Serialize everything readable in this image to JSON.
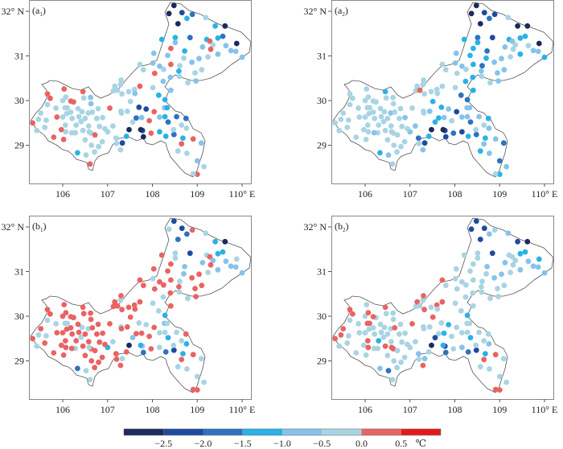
{
  "chart_data": {
    "type": "scatter",
    "panels": [
      {
        "id": "a1",
        "label_main": "(a",
        "label_sub": "1",
        "label_end": ")"
      },
      {
        "id": "a2",
        "label_main": "(a",
        "label_sub": "2",
        "label_end": ")"
      },
      {
        "id": "b1",
        "label_main": "(b",
        "label_sub": "1",
        "label_end": ")"
      },
      {
        "id": "b2",
        "label_main": "(b",
        "label_sub": "2",
        "label_end": ")"
      }
    ],
    "x_ticks": [
      "106",
      "107",
      "108",
      "109",
      "110° E"
    ],
    "x_tick_values": [
      106,
      107,
      108,
      109,
      110
    ],
    "y_ticks": [
      "32° N",
      "31",
      "30",
      "29"
    ],
    "y_tick_values": [
      32,
      31,
      30,
      29
    ],
    "xlim": [
      105.26,
      110.2
    ],
    "ylim": [
      28.14,
      32.25
    ],
    "colorbar": {
      "colors": [
        "#1c2a5c",
        "#1f4b9e",
        "#2e72bd",
        "#2ab2e6",
        "#86c3ec",
        "#a8d4e3",
        "#e96363",
        "#e5191d"
      ],
      "tick_labels": [
        "−2.5",
        "−2.0",
        "−1.5",
        "−1.0",
        "−0.5",
        "0.0",
        "0.5"
      ],
      "tick_values": [
        -2.5,
        -2.0,
        -1.5,
        -1.0,
        -0.5,
        0.0,
        0.5
      ],
      "unit": "℃"
    },
    "stations_lonlat": [
      [
        108.48,
        32.13
      ],
      [
        108.37,
        31.95
      ],
      [
        108.66,
        31.97
      ],
      [
        108.89,
        31.93
      ],
      [
        108.77,
        31.84
      ],
      [
        109.19,
        31.86
      ],
      [
        108.57,
        31.72
      ],
      [
        109.4,
        31.67
      ],
      [
        109.62,
        31.67
      ],
      [
        108.21,
        31.37
      ],
      [
        108.51,
        31.41
      ],
      [
        108.84,
        31.41
      ],
      [
        108.51,
        31.3
      ],
      [
        109.21,
        31.37
      ],
      [
        109.28,
        31.33
      ],
      [
        109.46,
        31.4
      ],
      [
        109.57,
        31.44
      ],
      [
        109.88,
        31.28
      ],
      [
        109.35,
        31.25
      ],
      [
        109.64,
        31.23
      ],
      [
        108.41,
        31.17
      ],
      [
        108.72,
        31.11
      ],
      [
        108.03,
        31.06
      ],
      [
        108.34,
        31.01
      ],
      [
        109.12,
        31.2
      ],
      [
        109.3,
        31.15
      ],
      [
        109.46,
        31.04
      ],
      [
        109.75,
        31.12
      ],
      [
        109.86,
        31.1
      ],
      [
        110.0,
        30.97
      ],
      [
        109.04,
        30.94
      ],
      [
        108.88,
        30.86
      ],
      [
        108.7,
        30.95
      ],
      [
        109.24,
        30.98
      ],
      [
        107.72,
        30.81
      ],
      [
        108.01,
        30.84
      ],
      [
        108.41,
        30.81
      ],
      [
        108.16,
        30.77
      ],
      [
        108.25,
        30.7
      ],
      [
        108.61,
        30.78
      ],
      [
        108.59,
        30.66
      ],
      [
        109.1,
        30.69
      ],
      [
        107.8,
        30.69
      ],
      [
        108.05,
        30.61
      ],
      [
        108.95,
        30.62
      ],
      [
        108.6,
        30.54
      ],
      [
        108.4,
        30.52
      ],
      [
        108.79,
        30.4
      ],
      [
        108.97,
        30.44
      ],
      [
        108.24,
        30.43
      ],
      [
        107.72,
        30.32
      ],
      [
        107.6,
        30.25
      ],
      [
        107.29,
        30.36
      ],
      [
        107.3,
        30.46
      ],
      [
        107.13,
        30.22
      ],
      [
        107.16,
        30.32
      ],
      [
        107.32,
        30.15
      ],
      [
        107.47,
        30.2
      ],
      [
        107.61,
        30.16
      ],
      [
        108.14,
        30.12
      ],
      [
        108.28,
        30.02
      ],
      [
        108.01,
        30.29
      ],
      [
        108.41,
        30.23
      ],
      [
        108.27,
        29.84
      ],
      [
        108.16,
        29.63
      ],
      [
        108.35,
        29.52
      ],
      [
        108.54,
        29.64
      ],
      [
        108.75,
        29.6
      ],
      [
        108.65,
        29.45
      ],
      [
        108.76,
        29.38
      ],
      [
        108.48,
        29.24
      ],
      [
        108.3,
        29.2
      ],
      [
        108.16,
        29.3
      ],
      [
        108.68,
        29.16
      ],
      [
        108.91,
        29.14
      ],
      [
        107.93,
        29.55
      ],
      [
        107.97,
        29.27
      ],
      [
        107.78,
        29.33
      ],
      [
        107.64,
        29.61
      ],
      [
        107.86,
        29.81
      ],
      [
        108.33,
        29.84
      ],
      [
        108.65,
        29.03
      ],
      [
        108.77,
        28.82
      ],
      [
        109.09,
        29.05
      ],
      [
        108.57,
        28.87
      ],
      [
        108.47,
        29.35
      ],
      [
        108.04,
        29.75
      ],
      [
        109.0,
        28.65
      ],
      [
        109.15,
        28.52
      ],
      [
        109.0,
        28.35
      ],
      [
        108.91,
        28.36
      ],
      [
        108.28,
        29.64
      ],
      [
        107.7,
        29.85
      ],
      [
        107.56,
        29.52
      ],
      [
        107.76,
        29.62
      ],
      [
        107.44,
        29.76
      ],
      [
        107.3,
        29.76
      ],
      [
        107.22,
        30.23
      ],
      [
        107.31,
        29.72
      ],
      [
        107.51,
        29.98
      ],
      [
        107.8,
        29.19
      ],
      [
        107.74,
        29.35
      ],
      [
        107.48,
        29.35
      ],
      [
        107.05,
        29.83
      ],
      [
        107.12,
        29.43
      ],
      [
        107.19,
        29.16
      ],
      [
        107.0,
        29.3
      ],
      [
        107.42,
        29.2
      ],
      [
        107.29,
        28.9
      ],
      [
        107.33,
        29.05
      ],
      [
        107.2,
        29.04
      ],
      [
        106.58,
        29.43
      ],
      [
        106.63,
        29.27
      ],
      [
        106.79,
        29.82
      ],
      [
        106.63,
        29.93
      ],
      [
        106.72,
        29.23
      ],
      [
        106.82,
        29.42
      ],
      [
        106.76,
        29.6
      ],
      [
        106.89,
        29.62
      ],
      [
        106.94,
        29.37
      ],
      [
        106.64,
        29.0
      ],
      [
        106.41,
        29.53
      ],
      [
        106.5,
        29.6
      ],
      [
        106.33,
        28.83
      ],
      [
        106.43,
        29.75
      ],
      [
        106.52,
        28.78
      ],
      [
        106.61,
        28.58
      ],
      [
        106.57,
        29.72
      ],
      [
        106.88,
        29.08
      ],
      [
        106.71,
        28.85
      ],
      [
        106.8,
        28.97
      ],
      [
        106.5,
        29.12
      ],
      [
        106.59,
        29.3
      ],
      [
        106.66,
        29.74
      ],
      [
        106.62,
        30.07
      ],
      [
        106.45,
        30.2
      ],
      [
        106.47,
        30.06
      ],
      [
        106.24,
        29.97
      ],
      [
        106.18,
        29.99
      ],
      [
        106.1,
        29.84
      ],
      [
        106.0,
        29.63
      ],
      [
        106.3,
        29.45
      ],
      [
        106.21,
        29.6
      ],
      [
        106.28,
        29.28
      ],
      [
        106.09,
        29.71
      ],
      [
        106.06,
        29.45
      ],
      [
        105.97,
        29.35
      ],
      [
        106.0,
        30.0
      ],
      [
        106.07,
        30.08
      ],
      [
        106.05,
        29.84
      ],
      [
        106.18,
        29.74
      ],
      [
        106.34,
        29.82
      ],
      [
        105.87,
        29.63
      ],
      [
        105.85,
        29.83
      ],
      [
        105.66,
        30.15
      ],
      [
        105.72,
        30.05
      ],
      [
        106.03,
        30.26
      ],
      [
        105.66,
        29.91
      ],
      [
        105.63,
        29.56
      ],
      [
        105.51,
        29.72
      ],
      [
        105.6,
        29.4
      ],
      [
        105.46,
        29.58
      ],
      [
        105.33,
        29.5
      ],
      [
        105.42,
        29.33
      ],
      [
        105.8,
        29.18
      ],
      [
        106.02,
        29.13
      ],
      [
        106.07,
        29.3
      ],
      [
        106.36,
        29.64
      ],
      [
        106.2,
        29.28
      ],
      [
        106.45,
        29.33
      ]
    ],
    "station_bins": {
      "a1": [
        0,
        0,
        1,
        2,
        3,
        5,
        0,
        3,
        0,
        3,
        3,
        2,
        4,
        3,
        6,
        3,
        2,
        0,
        5,
        4,
        6,
        3,
        4,
        4,
        4,
        6,
        4,
        4,
        4,
        4,
        4,
        4,
        5,
        5,
        5,
        4,
        6,
        4,
        5,
        5,
        3,
        5,
        5,
        6,
        5,
        5,
        4,
        5,
        4,
        4,
        6,
        5,
        5,
        5,
        5,
        5,
        5,
        5,
        4,
        3,
        3,
        5,
        4,
        4,
        4,
        2,
        2,
        2,
        5,
        5,
        2,
        3,
        3,
        3,
        6,
        6,
        6,
        1,
        2,
        1,
        3,
        6,
        5,
        4,
        5,
        5,
        6,
        4,
        5,
        6,
        5,
        3,
        1,
        5,
        4,
        5,
        5,
        5,
        5,
        5,
        0,
        0,
        0,
        6,
        5,
        5,
        5,
        3,
        5,
        1,
        5,
        5,
        5,
        5,
        4,
        6,
        5,
        5,
        5,
        5,
        5,
        5,
        5,
        3,
        5,
        5,
        6,
        5,
        5,
        5,
        5,
        5,
        5,
        5,
        4,
        6,
        5,
        6,
        6,
        5,
        5,
        5,
        5,
        5,
        5,
        5,
        6,
        5,
        5,
        5,
        5,
        5,
        6,
        5,
        6,
        6,
        6,
        5,
        5,
        5,
        5,
        5,
        6,
        5,
        6,
        6,
        5,
        5,
        5,
        5
      ],
      "a2": [
        0,
        0,
        1,
        1,
        2,
        5,
        0,
        0,
        0,
        3,
        2,
        1,
        3,
        3,
        4,
        3,
        3,
        0,
        5,
        5,
        3,
        2,
        4,
        3,
        4,
        5,
        3,
        4,
        4,
        3,
        4,
        4,
        3,
        5,
        5,
        4,
        3,
        4,
        5,
        2,
        4,
        4,
        5,
        5,
        4,
        5,
        3,
        5,
        4,
        3,
        5,
        5,
        5,
        5,
        5,
        5,
        5,
        5,
        5,
        2,
        2,
        5,
        3,
        4,
        4,
        2,
        4,
        3,
        5,
        4,
        2,
        3,
        1,
        3,
        4,
        5,
        2,
        1,
        3,
        4,
        4,
        4,
        4,
        2,
        3,
        5,
        1,
        2,
        4,
        3,
        5,
        4,
        3,
        3,
        4,
        4,
        5,
        6,
        5,
        3,
        1,
        0,
        0,
        5,
        4,
        2,
        4,
        3,
        4,
        1,
        5,
        5,
        5,
        5,
        5,
        5,
        5,
        5,
        4,
        5,
        5,
        5,
        5,
        3,
        5,
        4,
        5,
        4,
        5,
        5,
        5,
        5,
        5,
        5,
        5,
        3,
        5,
        5,
        5,
        5,
        5,
        5,
        5,
        5,
        5,
        5,
        5,
        5,
        5,
        5,
        5,
        5,
        5,
        5,
        5,
        5,
        5,
        5,
        5,
        5,
        5,
        5,
        5,
        5,
        5,
        5,
        5,
        5,
        4,
        5
      ],
      "b1": [
        1,
        5,
        1,
        6,
        2,
        5,
        2,
        3,
        0,
        6,
        5,
        1,
        5,
        5,
        6,
        3,
        3,
        5,
        4,
        4,
        6,
        4,
        6,
        6,
        4,
        6,
        4,
        4,
        4,
        4,
        6,
        6,
        4,
        5,
        6,
        5,
        6,
        6,
        6,
        5,
        6,
        6,
        6,
        6,
        6,
        5,
        6,
        5,
        6,
        5,
        6,
        6,
        5,
        6,
        6,
        6,
        6,
        6,
        6,
        5,
        3,
        5,
        6,
        4,
        5,
        3,
        5,
        6,
        5,
        3,
        1,
        2,
        5,
        3,
        6,
        6,
        6,
        5,
        6,
        5,
        5,
        6,
        5,
        5,
        5,
        5,
        6,
        5,
        5,
        6,
        6,
        5,
        5,
        4,
        6,
        6,
        5,
        6,
        6,
        6,
        2,
        3,
        0,
        6,
        5,
        6,
        3,
        6,
        6,
        5,
        6,
        6,
        6,
        6,
        6,
        6,
        6,
        6,
        6,
        6,
        6,
        5,
        6,
        2,
        5,
        5,
        5,
        5,
        6,
        6,
        6,
        6,
        5,
        6,
        6,
        6,
        6,
        6,
        6,
        5,
        6,
        6,
        6,
        5,
        6,
        6,
        6,
        6,
        6,
        5,
        6,
        6,
        6,
        5,
        6,
        6,
        6,
        5,
        5,
        6,
        6,
        5,
        6,
        5,
        6,
        6,
        6,
        6,
        6,
        6
      ],
      "b2": [
        1,
        1,
        1,
        5,
        4,
        4,
        1,
        1,
        0,
        5,
        5,
        1,
        5,
        5,
        5,
        3,
        3,
        3,
        5,
        4,
        5,
        4,
        5,
        5,
        4,
        5,
        4,
        4,
        4,
        4,
        4,
        4,
        5,
        5,
        6,
        5,
        5,
        5,
        5,
        5,
        5,
        5,
        5,
        5,
        5,
        5,
        5,
        5,
        5,
        5,
        6,
        6,
        5,
        6,
        5,
        6,
        6,
        5,
        5,
        5,
        3,
        5,
        5,
        5,
        5,
        3,
        5,
        5,
        5,
        4,
        1,
        2,
        4,
        3,
        6,
        5,
        5,
        1,
        5,
        3,
        5,
        6,
        5,
        5,
        5,
        5,
        5,
        5,
        5,
        6,
        6,
        5,
        5,
        1,
        3,
        5,
        5,
        5,
        5,
        6,
        2,
        3,
        0,
        6,
        5,
        4,
        5,
        5,
        6,
        4,
        5,
        5,
        6,
        5,
        5,
        5,
        5,
        5,
        5,
        5,
        5,
        5,
        5,
        4,
        5,
        2,
        5,
        5,
        5,
        5,
        5,
        5,
        6,
        6,
        5,
        6,
        5,
        5,
        6,
        6,
        5,
        3,
        5,
        5,
        5,
        6,
        5,
        5,
        6,
        6,
        5,
        5,
        5,
        5,
        6,
        6,
        5,
        5,
        5,
        6,
        5,
        6,
        6,
        5,
        5,
        5,
        6,
        5,
        5,
        6
      ]
    }
  }
}
